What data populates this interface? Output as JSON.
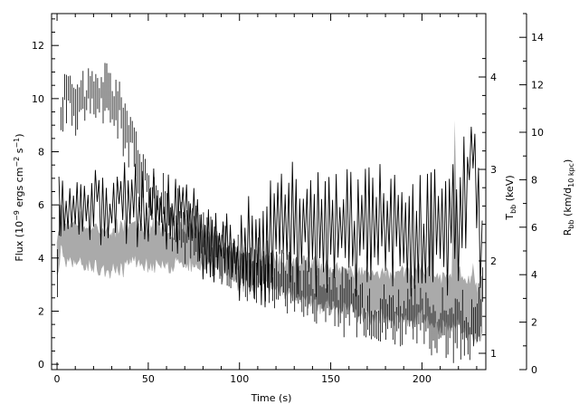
{
  "chart_data": {
    "type": "line",
    "title": "",
    "xlabel": "Time (s)",
    "xlim": [
      -3,
      235
    ],
    "xticks": [
      0,
      50,
      100,
      150,
      200
    ],
    "y_left": {
      "label": "Flux (10⁻⁹ ergs cm⁻² s⁻¹)",
      "lim": [
        -0.2,
        13.2
      ],
      "ticks": [
        0,
        2,
        4,
        6,
        8,
        10,
        12
      ]
    },
    "y_right_1": {
      "label": "T_bb (keV)",
      "ticks": [
        1,
        2,
        3,
        4
      ],
      "note": "inner right axis, non-linear scale"
    },
    "y_right_2": {
      "label": "R_bb (km/d_10 kpc)",
      "lim": [
        0,
        15
      ],
      "ticks": [
        0,
        2,
        4,
        6,
        8,
        10,
        12,
        14
      ]
    },
    "series": [
      {
        "role": "flux",
        "axis": "left",
        "color": "#000000",
        "style": "histogram with error bars",
        "x": [
          0,
          2,
          4,
          6,
          8,
          10,
          14,
          18,
          22,
          26,
          30,
          34,
          38,
          42,
          46,
          50,
          55,
          60,
          65,
          70,
          75,
          80,
          85,
          90,
          95,
          100,
          110,
          120,
          130,
          140,
          150,
          160,
          170,
          180,
          190,
          200,
          210,
          220,
          225,
          230,
          233
        ],
        "y": [
          3.0,
          8.8,
          10.3,
          10.5,
          10.2,
          10.0,
          10.1,
          10.0,
          10.3,
          10.1,
          10.0,
          9.6,
          8.9,
          8.0,
          7.2,
          6.8,
          6.1,
          5.8,
          5.5,
          5.1,
          4.9,
          4.6,
          4.4,
          4.2,
          4.0,
          3.8,
          3.5,
          3.3,
          3.0,
          2.7,
          2.5,
          2.3,
          2.0,
          1.9,
          1.8,
          1.6,
          1.5,
          1.4,
          1.3,
          1.2,
          3.0
        ]
      },
      {
        "role": "temperature",
        "axis": "right_1",
        "color": "#000000",
        "style": "line with error bars",
        "x": [
          1,
          3,
          5,
          10,
          15,
          20,
          25,
          30,
          35,
          40,
          45,
          50,
          55,
          60,
          65,
          70,
          75,
          80,
          85,
          90,
          95,
          100,
          105,
          110,
          115,
          120,
          130,
          140,
          150,
          160,
          170,
          180,
          190,
          200,
          210,
          220,
          228,
          233
        ],
        "y": [
          2.6,
          2.6,
          2.6,
          2.62,
          2.64,
          2.65,
          2.63,
          2.62,
          2.64,
          2.64,
          2.6,
          2.55,
          2.5,
          2.5,
          2.55,
          2.55,
          2.52,
          2.2,
          2.15,
          2.1,
          2.1,
          2.05,
          2.1,
          2.2,
          2.3,
          2.3,
          2.35,
          2.3,
          2.35,
          2.3,
          2.4,
          2.3,
          2.35,
          2.3,
          2.35,
          2.4,
          3.2,
          2.0
        ]
      },
      {
        "role": "radius",
        "axis": "right_2",
        "color": "#aaaaaa",
        "style": "shaded band",
        "x": [
          0,
          2,
          5,
          10,
          20,
          30,
          40,
          50,
          60,
          70,
          80,
          90,
          100,
          110,
          120,
          130,
          140,
          150,
          160,
          170,
          180,
          190,
          200,
          210,
          220,
          230,
          233
        ],
        "y": [
          5.0,
          5.8,
          5.4,
          5.5,
          5.1,
          5.0,
          5.2,
          5.3,
          5.1,
          5.3,
          5.2,
          4.6,
          4.2,
          4.1,
          4.0,
          3.8,
          3.6,
          3.4,
          3.4,
          3.2,
          3.1,
          3.0,
          3.2,
          2.8,
          3.1,
          2.2,
          2.6
        ],
        "band": [
          0.6,
          0.9,
          0.8,
          0.8,
          0.8,
          0.8,
          0.8,
          0.8,
          0.7,
          0.7,
          0.7,
          0.6,
          0.6,
          0.6,
          0.6,
          0.7,
          0.8,
          0.8,
          0.8,
          0.9,
          0.9,
          1.0,
          1.0,
          1.0,
          1.1,
          1.1,
          1.2
        ]
      }
    ],
    "grid": false,
    "legend": "none"
  },
  "labels": {
    "xlabel": "Time (s)",
    "ylabel_left_main": "Flux (10",
    "ylabel_left_exp1": "−9",
    "ylabel_left_mid1": " ergs cm",
    "ylabel_left_exp2": "−2",
    "ylabel_left_mid2": " s",
    "ylabel_left_exp3": "−1",
    "ylabel_left_end": ")",
    "tbb_main": "T",
    "tbb_sub": "bb",
    "tbb_unit": " (keV)",
    "rbb_main": "R",
    "rbb_sub": "bb",
    "rbb_unit1": " (km/d",
    "rbb_sub2": "10 kpc",
    "rbb_unit2": ")"
  }
}
